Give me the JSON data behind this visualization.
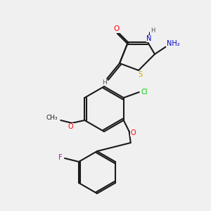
{
  "bg_color": "#f0f0f0",
  "bond_color": "#1a1a1a",
  "atom_colors": {
    "O": "#ff0000",
    "N": "#0000cc",
    "S": "#ccaa00",
    "Cl": "#00cc00",
    "F": "#cc00cc",
    "C": "#1a1a1a",
    "H": "#555555"
  },
  "figsize": [
    3.0,
    3.0
  ],
  "dpi": 100
}
